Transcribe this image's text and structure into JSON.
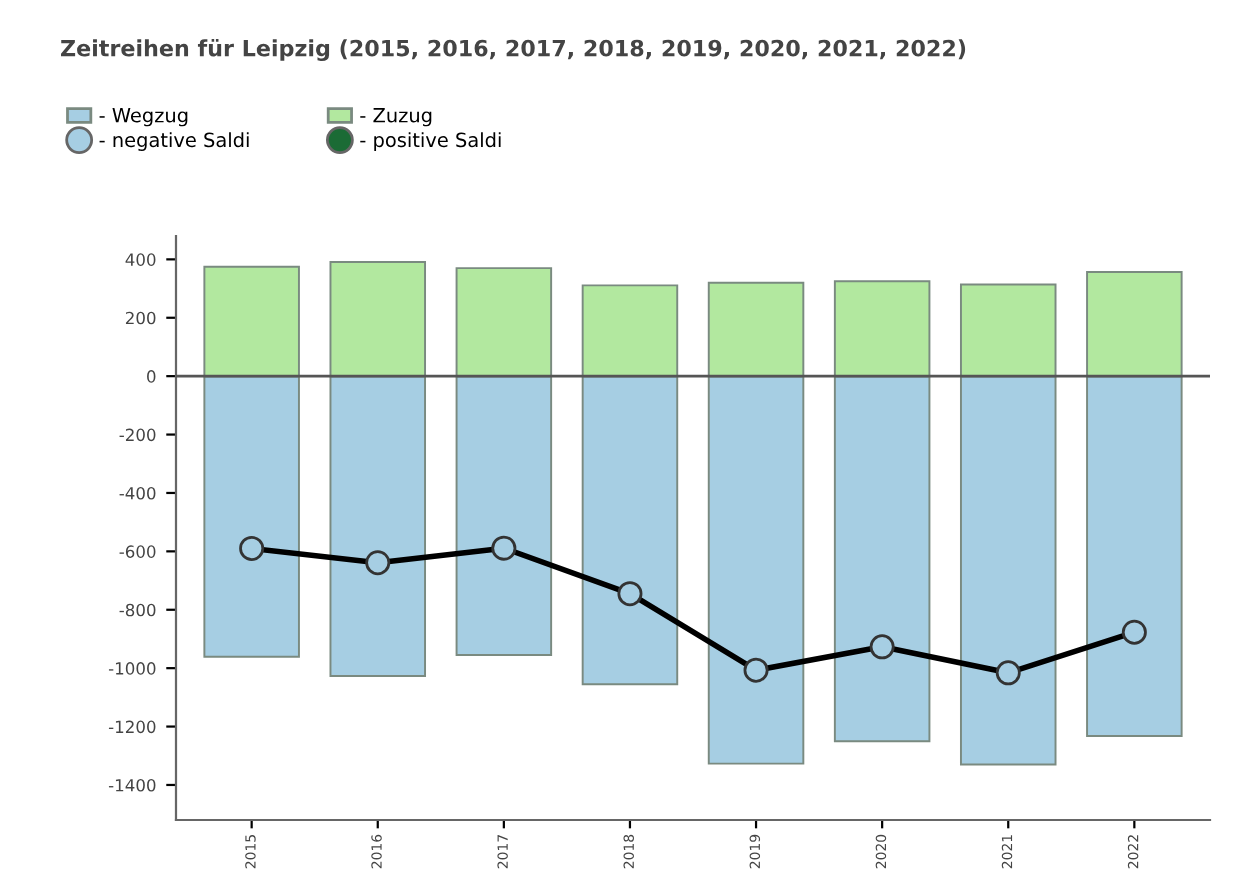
{
  "chart_data": {
    "type": "bar",
    "title": "Zeitreihen für Leipzig (2015, 2016, 2017, 2018, 2019, 2020, 2021, 2022)",
    "categories": [
      "2015",
      "2016",
      "2017",
      "2018",
      "2019",
      "2020",
      "2021",
      "2022"
    ],
    "series": [
      {
        "name": "- Wegzug",
        "color": "#a6cee3",
        "values": [
          -961,
          -1027,
          -955,
          -1055,
          -1327,
          -1250,
          -1330,
          -1232
        ]
      },
      {
        "name": "- Zuzug",
        "color": "#b2e89f",
        "values": [
          375,
          391,
          370,
          311,
          320,
          325,
          314,
          357
        ]
      },
      {
        "name": "- negative Saldi",
        "type": "line",
        "color": "#a6cee3",
        "marker": "circle",
        "values": [
          -590,
          -639,
          -589,
          -745,
          -1007,
          -927,
          -1016,
          -877
        ]
      },
      {
        "name": "- positive Saldi",
        "type": "line",
        "color": "#1b6b35",
        "marker": "circle",
        "values": [
          null,
          null,
          null,
          null,
          null,
          null,
          null,
          null
        ]
      }
    ],
    "ylim": [
      -1520,
      480
    ],
    "yticks": [
      -1400,
      -1200,
      -1000,
      -800,
      -600,
      -400,
      -200,
      0,
      200,
      400
    ],
    "ref_lines": [
      {
        "axis": "y",
        "value": 0,
        "color": "#555555"
      }
    ],
    "stacked": true,
    "grid": false,
    "legend": "top left"
  }
}
